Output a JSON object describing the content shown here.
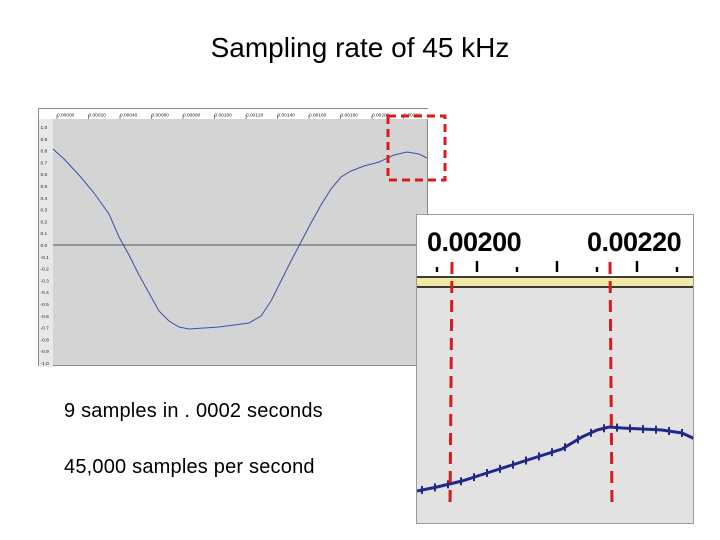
{
  "slide": {
    "title": "Sampling rate of 45 kHz",
    "caption_line1": "9 samples in . 0002 seconds",
    "caption_line2": "45,000 samples per second"
  },
  "waveform": {
    "ruler_labels": [
      "0.00000",
      "0.00020",
      "0.00040",
      "0.00060",
      "0.00080",
      "0.00100",
      "0.00120",
      "0.00140",
      "0.00160",
      "0.00180",
      "0.00200",
      "0.00220"
    ],
    "amplitude_labels": [
      "1.0",
      "0.9",
      "0.8",
      "0.7",
      "0.6",
      "0.5",
      "0.4",
      "0.3",
      "0.2",
      "0.1",
      "0.0",
      "-0.1",
      "-0.2",
      "-0.3",
      "-0.4",
      "-0.5",
      "-0.6",
      "-0.7",
      "-0.8",
      "-0.9",
      "-1.0"
    ],
    "colors": {
      "background": "#d4d4d4",
      "ruler": "#ffffff",
      "wave": "#3b4fb0",
      "highlight": "#d81b1b"
    }
  },
  "zoom": {
    "label_left": "0.00200",
    "label_right": "0.00220",
    "colors": {
      "wave": "#1f2a86",
      "marker": "#d81b1b",
      "band": "#f3e9a6"
    }
  }
}
